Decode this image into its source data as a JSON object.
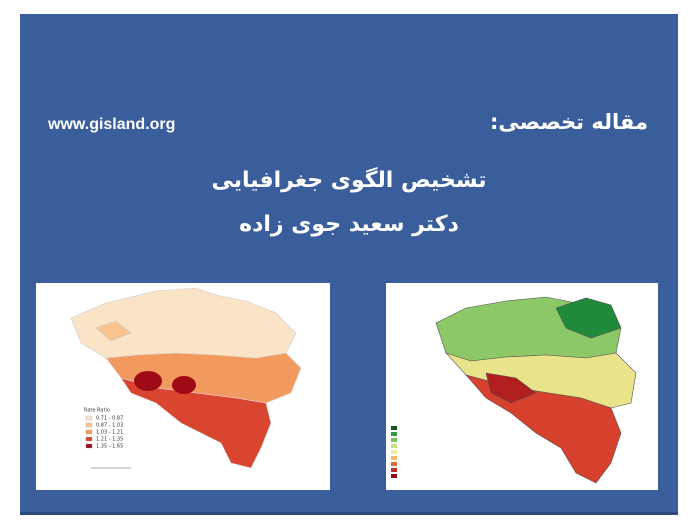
{
  "header": {
    "label": "مقاله تخصصی:",
    "website": "www.gisland.org"
  },
  "title": {
    "line1": "تشخیص الگوی جغرافیایی",
    "line2": "دکتر سعید جوی زاده"
  },
  "figures": [
    {
      "legend_title": "Rate Ratio",
      "legend_items": [
        "0.71 - 0.87",
        "0.87 - 1.03",
        "1.03 - 1.21",
        "1.21 - 1.35",
        "1.35 - 1.65"
      ]
    }
  ]
}
